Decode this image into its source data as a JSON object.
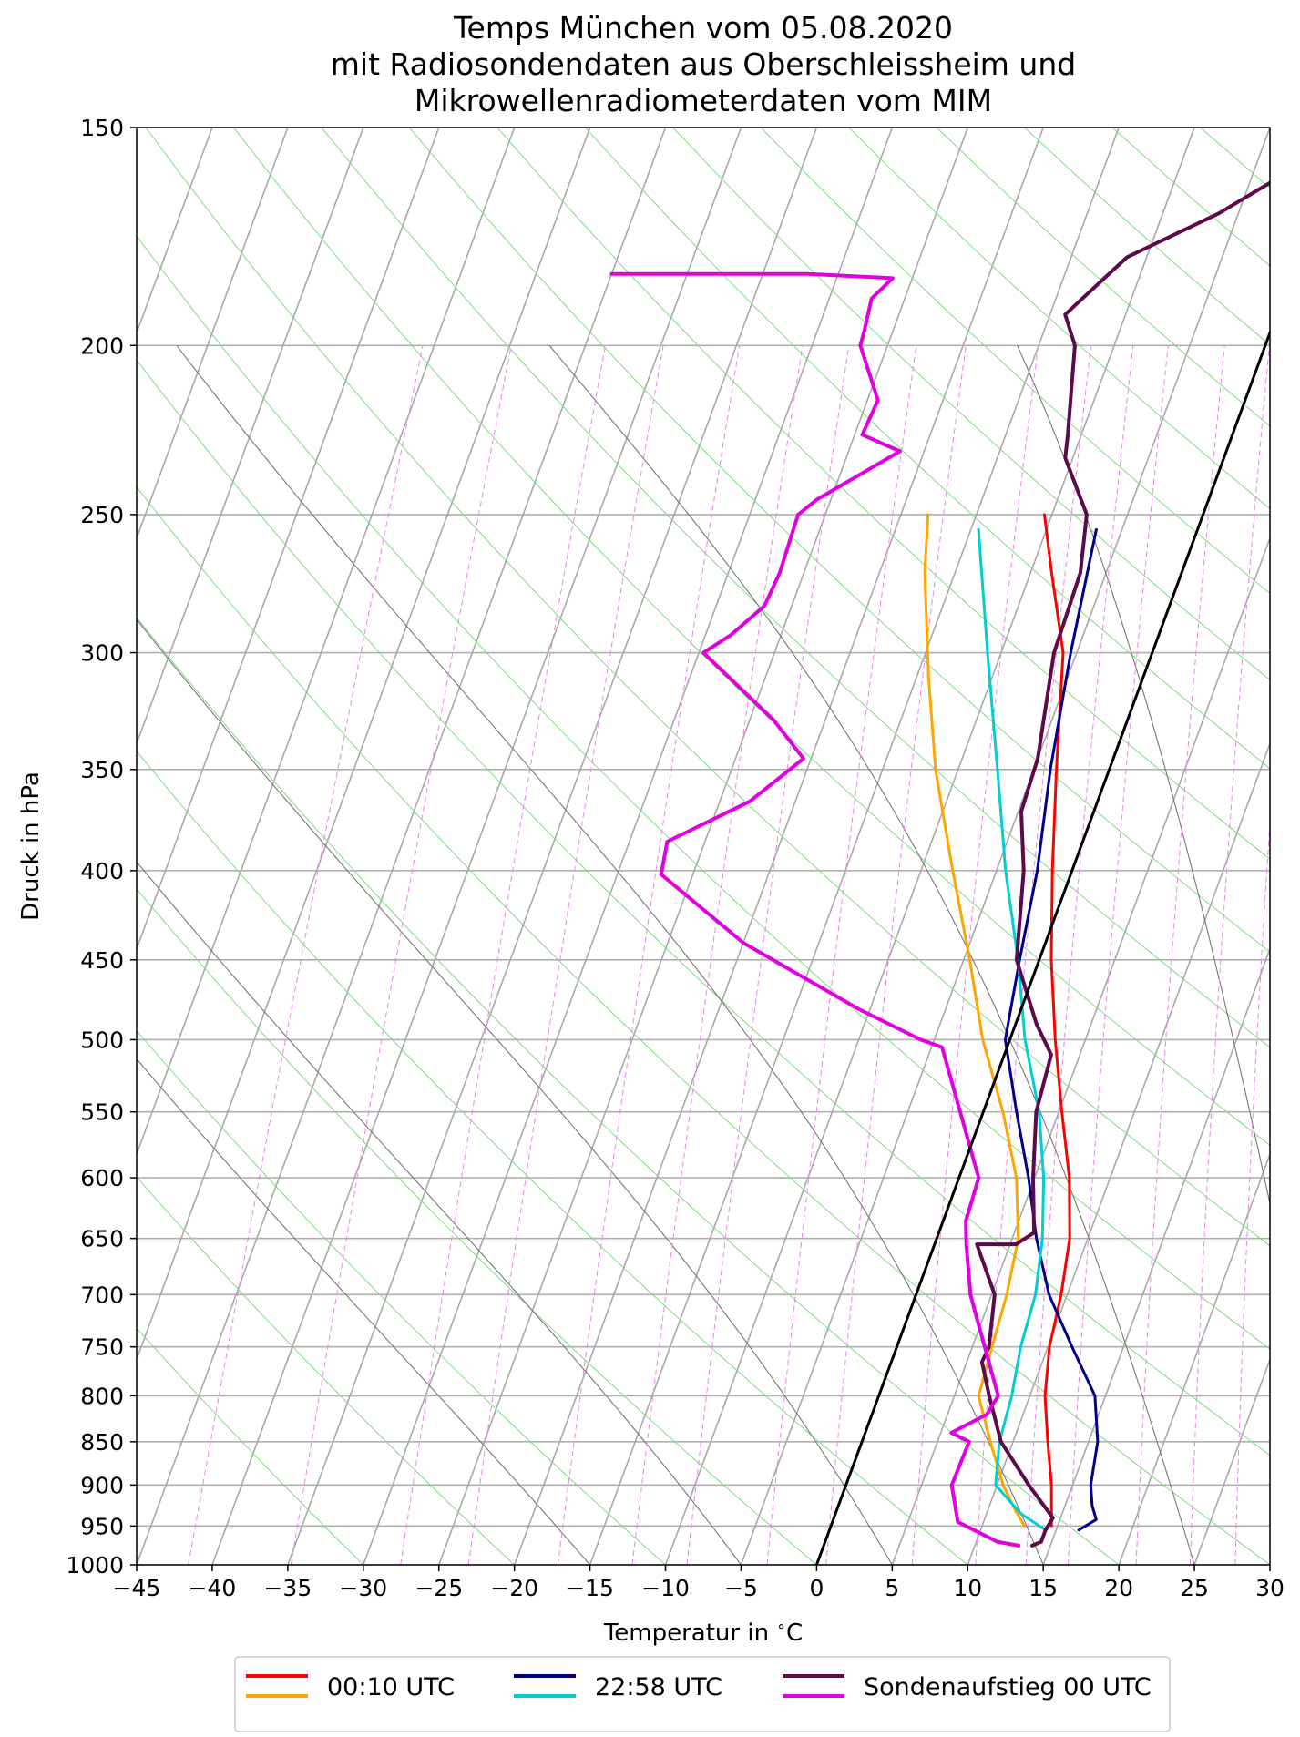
{
  "chart_data": {
    "type": "line",
    "subtype": "skew-T log-p diagram",
    "title_lines": [
      "Temps München vom 05.08.2020",
      "mit Radiosondendaten aus Oberschleissheim und",
      "Mikrowellenradiometerdaten vom MIM"
    ],
    "xlabel": "Temperatur in $^\\circ$C",
    "xlabel_parts": [
      "Temperatur in ",
      "∘",
      "C"
    ],
    "ylabel": "Druck in hPa",
    "x_ticks": [
      -45,
      -40,
      -35,
      -30,
      -25,
      -20,
      -15,
      -10,
      -5,
      0,
      5,
      10,
      15,
      20,
      25,
      30
    ],
    "x_tick_labels": [
      "−45",
      "−40",
      "−35",
      "−30",
      "−25",
      "−20",
      "−15",
      "−10",
      "−5",
      "0",
      "5",
      "10",
      "15",
      "20",
      "25",
      "30"
    ],
    "y_ticks": [
      150,
      200,
      250,
      300,
      350,
      400,
      450,
      500,
      550,
      600,
      650,
      700,
      750,
      800,
      850,
      900,
      950,
      1000
    ],
    "y_tick_labels": [
      "150",
      "200",
      "250",
      "300",
      "350",
      "400",
      "450",
      "500",
      "550",
      "600",
      "650",
      "700",
      "750",
      "800",
      "850",
      "900",
      "950",
      "1000"
    ],
    "xlim": [
      -45,
      30
    ],
    "ylim": [
      1000,
      150
    ],
    "y_scale": "log",
    "grid": true,
    "legend_position": "bottom-center",
    "legend": [
      {
        "label": "00:10 UTC",
        "colors": [
          "#ff0000",
          "#ffa500"
        ]
      },
      {
        "label": "22:58 UTC",
        "colors": [
          "#00008b",
          "#00ced1"
        ]
      },
      {
        "label": "Sondenaufstieg 00 UTC",
        "colors": [
          "#5c0a4a",
          "#e000e0"
        ]
      }
    ],
    "series": [
      {
        "legend_group": "00:10 UTC",
        "variable": "temperature",
        "color": "#ff0000",
        "width": 3,
        "points": [
          [
            14.6,
            950
          ],
          [
            13.6,
            900
          ],
          [
            12.3,
            850
          ],
          [
            11,
            800
          ],
          [
            10.1,
            750
          ],
          [
            9.6,
            700
          ],
          [
            8.8,
            650
          ],
          [
            7.3,
            600
          ],
          [
            5.2,
            550
          ],
          [
            3,
            500
          ],
          [
            0.8,
            450
          ],
          [
            -1.3,
            400
          ],
          [
            -3.5,
            350
          ],
          [
            -5.9,
            300
          ],
          [
            -8.6,
            270
          ],
          [
            -10.5,
            250
          ]
        ]
      },
      {
        "legend_group": "00:10 UTC",
        "variable": "dewpoint",
        "color": "#ffa500",
        "width": 3,
        "points": [
          [
            12.8,
            950
          ],
          [
            11.8,
            930
          ],
          [
            10.4,
            900
          ],
          [
            8.5,
            850
          ],
          [
            6.6,
            800
          ],
          [
            6.3,
            750
          ],
          [
            6,
            700
          ],
          [
            5.4,
            650
          ],
          [
            3.8,
            600
          ],
          [
            1.3,
            550
          ],
          [
            -1.8,
            500
          ],
          [
            -4.6,
            450
          ],
          [
            -7.9,
            400
          ],
          [
            -11.5,
            350
          ],
          [
            -14.2,
            310
          ],
          [
            -17,
            270
          ],
          [
            -18.2,
            250
          ]
        ]
      },
      {
        "legend_group": "22:58 UTC",
        "variable": "temperature",
        "color": "#00008b",
        "width": 3,
        "points": [
          [
            16.5,
            955
          ],
          [
            17.4,
            942
          ],
          [
            16.8,
            925
          ],
          [
            16.2,
            900
          ],
          [
            15.6,
            850
          ],
          [
            14.3,
            800
          ],
          [
            11.6,
            750
          ],
          [
            8.8,
            700
          ],
          [
            6.6,
            650
          ],
          [
            4.6,
            600
          ],
          [
            2.2,
            550
          ],
          [
            -0.3,
            500
          ],
          [
            -1.3,
            450
          ],
          [
            -2.3,
            400
          ],
          [
            -3.9,
            350
          ],
          [
            -5.4,
            300
          ],
          [
            -6.7,
            255
          ]
        ]
      },
      {
        "legend_group": "22:58 UTC",
        "variable": "dewpoint",
        "color": "#00ced1",
        "width": 3,
        "points": [
          [
            14.3,
            955
          ],
          [
            12.3,
            935
          ],
          [
            9.9,
            900
          ],
          [
            9.1,
            850
          ],
          [
            8.8,
            800
          ],
          [
            8.2,
            750
          ],
          [
            7.9,
            700
          ],
          [
            7,
            650
          ],
          [
            5.6,
            600
          ],
          [
            3.7,
            550
          ],
          [
            1,
            500
          ],
          [
            -1.4,
            450
          ],
          [
            -4.4,
            400
          ],
          [
            -7.4,
            350
          ],
          [
            -10.9,
            300
          ],
          [
            -14.5,
            255
          ]
        ]
      },
      {
        "legend_group": "Sondenaufstieg 00 UTC",
        "variable": "temperature",
        "color": "#5c0a4a",
        "width": 4,
        "points": [
          [
            13.8,
            975
          ],
          [
            14.3,
            970
          ],
          [
            14.3,
            955
          ],
          [
            14.5,
            940
          ],
          [
            12.1,
            900
          ],
          [
            9.2,
            850
          ],
          [
            7.3,
            800
          ],
          [
            6,
            765
          ],
          [
            6.1,
            750
          ],
          [
            5.2,
            700
          ],
          [
            2.8,
            655
          ],
          [
            5.4,
            655
          ],
          [
            6.3,
            645
          ],
          [
            4.9,
            600
          ],
          [
            3.5,
            550
          ],
          [
            3.1,
            510
          ],
          [
            1.4,
            490
          ],
          [
            -1.5,
            450
          ],
          [
            -3.2,
            400
          ],
          [
            -4.8,
            370
          ],
          [
            -5,
            345
          ],
          [
            -6.5,
            300
          ],
          [
            -6.7,
            270
          ],
          [
            -7.7,
            250
          ],
          [
            -10.5,
            232
          ],
          [
            -10.9,
            225
          ],
          [
            -12.6,
            200
          ],
          [
            -14,
            192
          ],
          [
            -11.3,
            178
          ],
          [
            -6.3,
            168
          ],
          [
            -3.1,
            160
          ],
          [
            1.8,
            151
          ]
        ]
      },
      {
        "legend_group": "Sondenaufstieg 00 UTC",
        "variable": "dewpoint",
        "color": "#e000e0",
        "width": 4,
        "points": [
          [
            12.9,
            975
          ],
          [
            11.4,
            970
          ],
          [
            8.3,
            945
          ],
          [
            7,
            900
          ],
          [
            7.1,
            850
          ],
          [
            5.7,
            840
          ],
          [
            7.6,
            820
          ],
          [
            7.9,
            800
          ],
          [
            4.5,
            720
          ],
          [
            3.6,
            700
          ],
          [
            2.1,
            655
          ],
          [
            1.5,
            635
          ],
          [
            1.3,
            600
          ],
          [
            -4.3,
            505
          ],
          [
            -5.9,
            500
          ],
          [
            -10.8,
            480
          ],
          [
            -20,
            440
          ],
          [
            -27.1,
            402
          ],
          [
            -27.5,
            385
          ],
          [
            -23,
            365
          ],
          [
            -20.5,
            345
          ],
          [
            -23.4,
            328
          ],
          [
            -29.7,
            300
          ],
          [
            -28.3,
            293
          ],
          [
            -26.8,
            282
          ],
          [
            -26.6,
            270
          ],
          [
            -26.8,
            250
          ],
          [
            -25.9,
            245
          ],
          [
            -21.6,
            230
          ],
          [
            -24.5,
            225
          ],
          [
            -24.3,
            215
          ],
          [
            -26.8,
            200
          ],
          [
            -26.9,
            196
          ],
          [
            -27.2,
            188
          ],
          [
            -26.3,
            183
          ],
          [
            -32,
            182
          ],
          [
            -37.5,
            182
          ],
          [
            -45,
            182
          ]
        ]
      },
      {
        "legend_group": "",
        "variable": "0 °C isotherm",
        "color": "#000000",
        "width": 3,
        "points": [
          [
            0,
            1000
          ],
          [
            0,
            150
          ]
        ]
      }
    ]
  }
}
